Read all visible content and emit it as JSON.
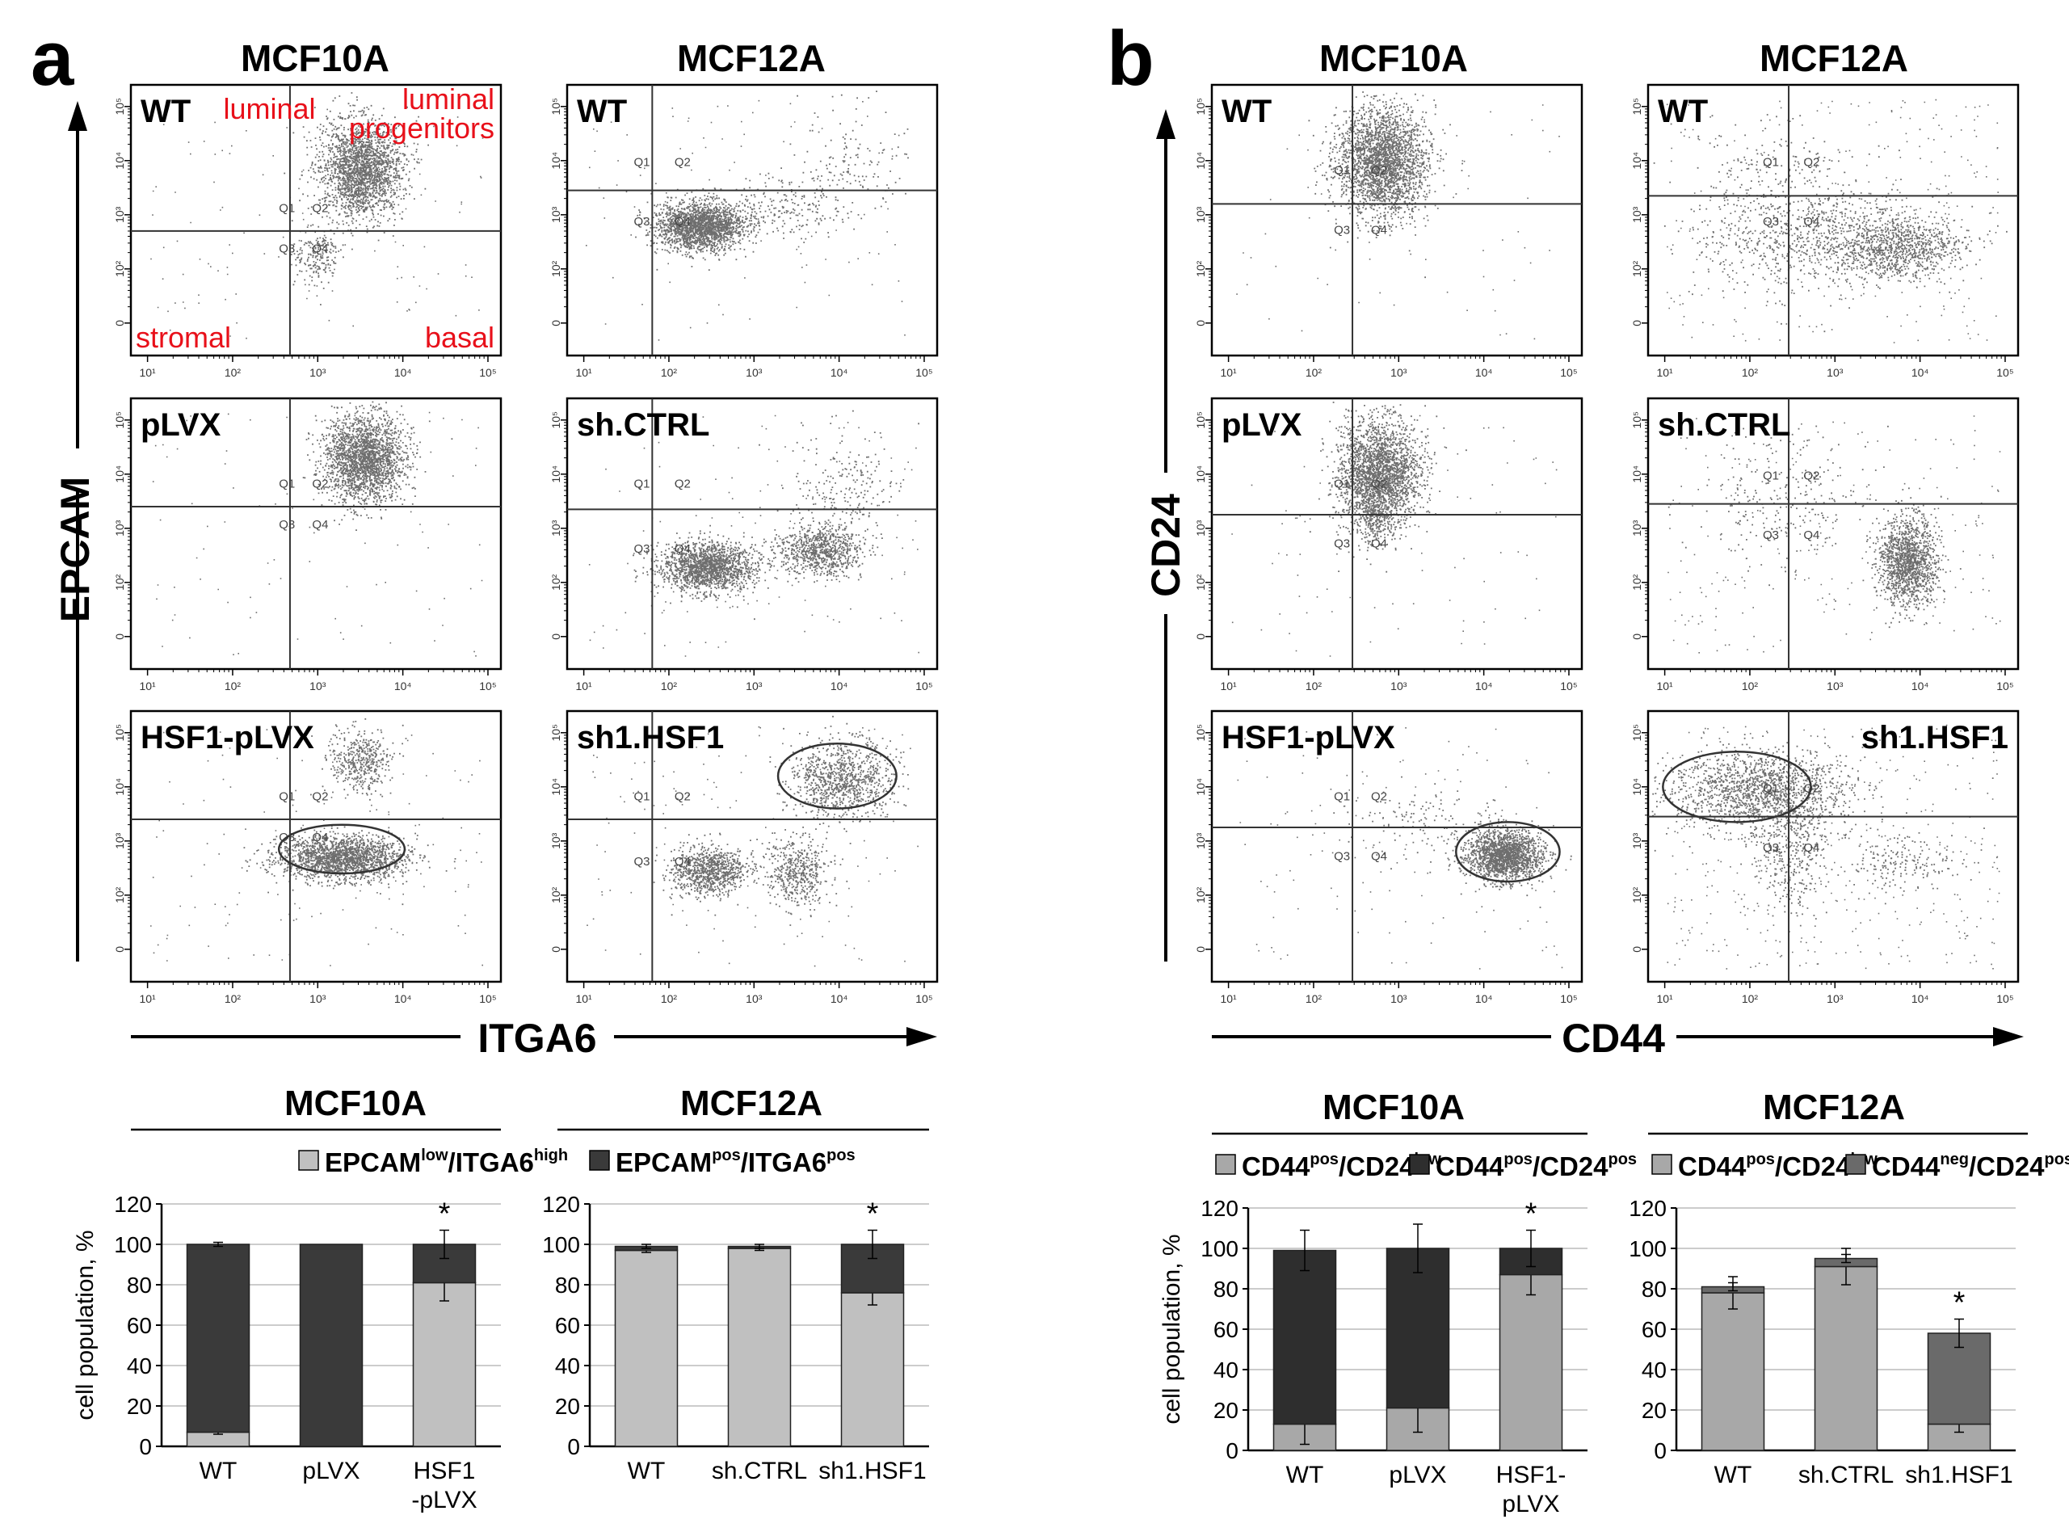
{
  "panels": {
    "a": {
      "letter": "a",
      "col_titles": [
        "MCF10A",
        "MCF12A"
      ],
      "y_axis_label": "EPCAM",
      "x_axis_label": "ITGA6",
      "quadrant_annotations": {
        "luminal": "luminal",
        "luminal_progenitors_1": "luminal",
        "luminal_progenitors_2": "progenitors",
        "stromal": "stromal",
        "basal": "basal"
      },
      "rows": [
        {
          "left": "WT",
          "right": "WT"
        },
        {
          "left": "pLVX",
          "right": "sh.CTRL"
        },
        {
          "left": "HSF1-pLVX",
          "right": "sh1.HSF1"
        }
      ]
    },
    "b": {
      "letter": "b",
      "col_titles": [
        "MCF10A",
        "MCF12A"
      ],
      "y_axis_label": "CD24",
      "x_axis_label": "CD44",
      "rows": [
        {
          "left": "WT",
          "right": "WT"
        },
        {
          "left": "pLVX",
          "right": "sh.CTRL"
        },
        {
          "left": "HSF1-pLVX",
          "right": "sh1.HSF1"
        }
      ]
    }
  },
  "quadrant_labels": [
    "Q1",
    "Q2",
    "Q3",
    "Q4"
  ],
  "colors": {
    "light": "#c0c0c0",
    "dark": "#3a3a3a",
    "mid": "#6a6a6a",
    "medium_light": "#a8a8a8",
    "red": "#e8101a",
    "dot": "#555555"
  },
  "chart_data": [
    {
      "type": "bar",
      "title": "MCF10A",
      "stacked": true,
      "ylabel": "cell population, %",
      "ylim": [
        0,
        120
      ],
      "yticks": [
        0,
        20,
        40,
        60,
        80,
        100,
        120
      ],
      "categories": [
        "WT",
        "pLVX",
        "HSF1-pLVX"
      ],
      "category_lines": [
        [
          "WT"
        ],
        [
          "pLVX"
        ],
        [
          "HSF1",
          "-pLVX"
        ]
      ],
      "legend_text": "EPCAM",
      "series": [
        {
          "name": "EPCAM low/ITGA6 high",
          "values": [
            7,
            0,
            81
          ],
          "errors": [
            1,
            0,
            9
          ],
          "color": "#c0c0c0"
        },
        {
          "name": "EPCAM pos/ITGA6 pos",
          "values": [
            93,
            100,
            19
          ],
          "errors": [
            1,
            0,
            7
          ],
          "color": "#3a3a3a"
        }
      ],
      "significance": [
        "",
        "",
        "*"
      ]
    },
    {
      "type": "bar",
      "title": "MCF12A",
      "stacked": true,
      "ylabel": "",
      "ylim": [
        0,
        120
      ],
      "yticks": [
        0,
        20,
        40,
        60,
        80,
        100,
        120
      ],
      "categories": [
        "WT",
        "sh.CTRL",
        "sh1.HSF1"
      ],
      "category_lines": [
        [
          "WT"
        ],
        [
          "sh.CTRL"
        ],
        [
          "sh1.HSF1"
        ]
      ],
      "series": [
        {
          "name": "EPCAM low/ITGA6 high",
          "values": [
            97,
            98,
            76
          ],
          "errors": [
            1,
            1,
            6
          ],
          "color": "#c0c0c0"
        },
        {
          "name": "EPCAM pos/ITGA6 pos",
          "values": [
            2,
            1,
            24
          ],
          "errors": [
            1,
            1,
            7
          ],
          "color": "#3a3a3a"
        }
      ],
      "significance": [
        "",
        "",
        "*"
      ]
    },
    {
      "type": "bar",
      "title": "MCF10A",
      "stacked": true,
      "ylabel": "cell population, %",
      "ylim": [
        0,
        120
      ],
      "yticks": [
        0,
        20,
        40,
        60,
        80,
        100,
        120
      ],
      "categories": [
        "WT",
        "pLVX",
        "HSF1-pLVX"
      ],
      "category_lines": [
        [
          "WT"
        ],
        [
          "pLVX"
        ],
        [
          "HSF1-",
          "pLVX"
        ]
      ],
      "series": [
        {
          "name": "CD44 pos/CD24 low",
          "values": [
            13,
            21,
            87
          ],
          "errors": [
            10,
            12,
            10
          ],
          "color": "#a8a8a8"
        },
        {
          "name": "CD44 pos/CD24 pos",
          "values": [
            86,
            79,
            13
          ],
          "errors": [
            10,
            12,
            9
          ],
          "color": "#2e2e2e"
        }
      ],
      "significance": [
        "",
        "",
        "*"
      ]
    },
    {
      "type": "bar",
      "title": "MCF12A",
      "stacked": true,
      "ylabel": "",
      "ylim": [
        0,
        120
      ],
      "yticks": [
        0,
        20,
        40,
        60,
        80,
        100,
        120
      ],
      "categories": [
        "WT",
        "sh.CTRL",
        "sh1.HSF1"
      ],
      "category_lines": [
        [
          "WT"
        ],
        [
          "sh.CTRL"
        ],
        [
          "sh1.HSF1"
        ]
      ],
      "series": [
        {
          "name": "CD44 pos/CD24 low",
          "values": [
            78,
            91,
            13
          ],
          "errors": [
            8,
            9,
            4
          ],
          "color": "#a8a8a8"
        },
        {
          "name": "CD44 neg/CD24 pos",
          "values": [
            3,
            4,
            45
          ],
          "errors": [
            2,
            2,
            7
          ],
          "color": "#6a6a6a"
        }
      ],
      "significance": [
        "",
        "",
        "*"
      ]
    }
  ],
  "legends": {
    "a_left": {
      "main": "EPCAM",
      "sup1": "low",
      "mid": "/ITGA6",
      "sup2": "high"
    },
    "a_right": {
      "main": "EPCAM",
      "sup1": "pos",
      "mid": "/ITGA6",
      "sup2": "pos"
    },
    "b_l1": {
      "main": "CD44",
      "sup1": "pos",
      "mid": "/CD24",
      "sup2": "low"
    },
    "b_l2": {
      "main": "CD44",
      "sup1": "pos",
      "mid": "/CD24",
      "sup2": "pos"
    },
    "b_r1": {
      "main": "CD44",
      "sup1": "pos",
      "mid": "/CD24",
      "sup2": "low"
    },
    "b_r2": {
      "main": "CD44",
      "sup1": "neg",
      "mid": "/CD24",
      "sup2": "pos"
    }
  }
}
